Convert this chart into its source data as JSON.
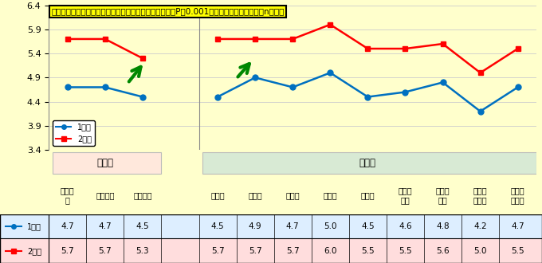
{
  "annotation": "事前値と事後値の比較においてに全ての評価値においてP＜0.001で有意差が認められた．n＝４７",
  "categories": [
    "進める\n力",
    "伝える力",
    "考える力",
    "",
    "計画力",
    "実行力",
    "管理力",
    "傾聴力",
    "発信力",
    "状況把\n握力",
    "課題発\n見力",
    "創造的\n思考力",
    "論理的\n思考力"
  ],
  "series1_label": "1回目",
  "series2_label": "2回目",
  "series1_values": [
    4.7,
    4.7,
    4.5,
    null,
    4.5,
    4.9,
    4.7,
    5.0,
    4.5,
    4.6,
    4.8,
    4.2,
    4.7
  ],
  "series2_values": [
    5.7,
    5.7,
    5.3,
    null,
    5.7,
    5.7,
    5.7,
    6.0,
    5.5,
    5.5,
    5.6,
    5.0,
    5.5
  ],
  "series1_color": "#0070C0",
  "series2_color": "#FF0000",
  "ylim_min": 3.4,
  "ylim_max": 6.4,
  "yticks": [
    3.4,
    3.9,
    4.4,
    4.9,
    5.4,
    5.9,
    6.4
  ],
  "bg_color": "#FFFFCC",
  "annotation_bg": "#FFFF00",
  "annotation_border": "#000000",
  "daiclass_label": "大分類",
  "daiclass_bg": "#FFE8DC",
  "chuclass_label": "中分類",
  "chuclass_bg": "#D8EAD4",
  "table_data_row1": [
    "4.7",
    "4.7",
    "4.5",
    "",
    "4.5",
    "4.9",
    "4.7",
    "5.0",
    "4.5",
    "4.6",
    "4.8",
    "4.2",
    "4.7"
  ],
  "table_data_row2": [
    "5.7",
    "5.7",
    "5.3",
    "",
    "5.7",
    "5.7",
    "5.7",
    "6.0",
    "5.5",
    "5.5",
    "5.6",
    "5.0",
    "5.5"
  ],
  "arrow_color": "#008800",
  "grid_color": "#CCCCCC",
  "separator_color": "#888888"
}
